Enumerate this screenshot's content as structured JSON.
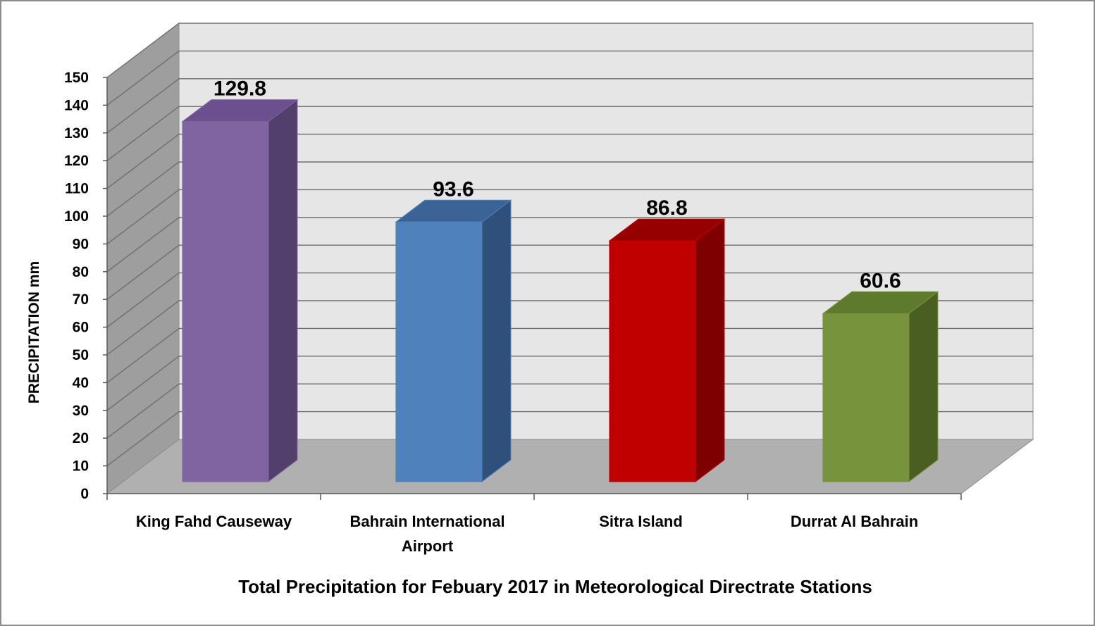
{
  "chart_data": {
    "type": "bar",
    "style": "3d-column",
    "categories": [
      "King Fahd Causeway",
      "Bahrain International Airport",
      "Sitra Island",
      "Durrat Al Bahrain"
    ],
    "category_lines": [
      [
        "King Fahd Causeway"
      ],
      [
        "Bahrain International",
        "Airport"
      ],
      [
        "Sitra Island"
      ],
      [
        "Durrat Al Bahrain"
      ]
    ],
    "values": [
      129.8,
      93.6,
      86.8,
      60.6
    ],
    "data_labels": [
      "129.8",
      "93.6",
      "86.8",
      "60.6"
    ],
    "colors": [
      "#8064A2",
      "#4F81BD",
      "#C00000",
      "#77933C"
    ],
    "side_colors": [
      "#533F6B",
      "#2E507A",
      "#7F0000",
      "#4A5E22"
    ],
    "top_colors": [
      "#6B4F8F",
      "#3C6396",
      "#960000",
      "#5E7A2D"
    ],
    "ylabel": "PRECIPITATION mm",
    "xlabel": "Total Precipitation for Febuary 2017 in Meteorological Directrate Stations",
    "ylim": [
      0,
      150
    ],
    "yticks": [
      "0",
      "10",
      "20",
      "30",
      "40",
      "50",
      "60",
      "70",
      "80",
      "90",
      "100",
      "110",
      "120",
      "130",
      "140",
      "150"
    ],
    "grid": true,
    "legend": "none"
  }
}
